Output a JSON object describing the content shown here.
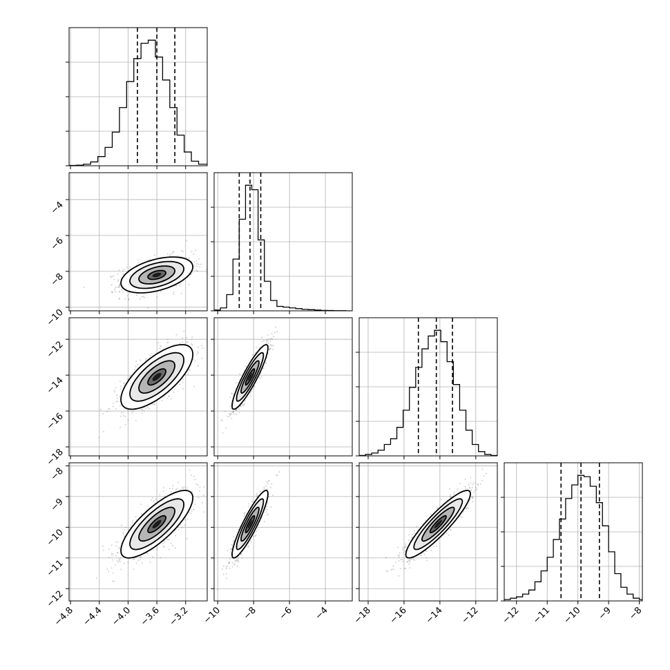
{
  "chart_data": {
    "type": "corner",
    "grid": true,
    "parameters": [
      {
        "range": [
          -4.82,
          -2.9
        ],
        "ticks": [
          -4.8,
          -4.4,
          -4.0,
          -3.6,
          -3.2
        ],
        "tick_labels": [
          "−4.8",
          "−4.4",
          "−4.0",
          "−3.6",
          "−3.2"
        ],
        "quantiles": [
          -3.87,
          -3.6,
          -3.35
        ],
        "hist": {
          "edges": [
            -4.82,
            -4.72,
            -4.62,
            -4.52,
            -4.42,
            -4.32,
            -4.22,
            -4.12,
            -4.02,
            -3.92,
            -3.82,
            -3.72,
            -3.62,
            -3.52,
            -3.42,
            -3.32,
            -3.22,
            -3.12,
            -3.02,
            -2.9
          ],
          "counts": [
            0.2,
            0.4,
            1,
            2.5,
            6,
            12,
            22,
            38,
            55,
            70,
            80,
            82,
            71,
            56,
            38,
            20,
            9,
            3,
            1
          ]
        }
      },
      {
        "range": [
          -10.2,
          -2.5
        ],
        "ticks": [
          -10,
          -8,
          -6,
          -4
        ],
        "tick_labels": [
          "−10",
          "−8",
          "−6",
          "−4"
        ],
        "ticks_y": [
          -10,
          -8,
          -6,
          -4
        ],
        "tick_labels_y": [
          "−10",
          "−8",
          "−6",
          "−4"
        ],
        "quantiles": [
          -8.8,
          -8.2,
          -7.6
        ],
        "hist": {
          "edges": [
            -10.2,
            -9.85,
            -9.5,
            -9.15,
            -8.8,
            -8.45,
            -8.1,
            -7.75,
            -7.4,
            -7.05,
            -6.7,
            -6.35,
            -6.0,
            -5.65,
            -5.3,
            -4.95,
            -4.6,
            -4.25,
            -3.9,
            -3.55,
            -3.2,
            -2.85,
            -2.5
          ],
          "counts": [
            0.5,
            2,
            11,
            35,
            62,
            85,
            82,
            48,
            20,
            7,
            3,
            2.5,
            2,
            1.5,
            1,
            0.8,
            0.5,
            0.3,
            0.2,
            0.1,
            0.1,
            0
          ]
        }
      },
      {
        "range": [
          -18.5,
          -10.8
        ],
        "ticks": [
          -18,
          -16,
          -14,
          -12
        ],
        "tick_labels": [
          "−18",
          "−16",
          "−14",
          "−12"
        ],
        "ticks_y": [
          -18,
          -16,
          -14,
          -12
        ],
        "tick_labels_y": [
          "−18",
          "−16",
          "−14",
          "−12"
        ],
        "quantiles": [
          -15.2,
          -14.2,
          -13.3
        ],
        "hist": {
          "edges": [
            -18.5,
            -18.15,
            -17.8,
            -17.45,
            -17.1,
            -16.75,
            -16.4,
            -16.05,
            -15.7,
            -15.35,
            -15.0,
            -14.65,
            -14.3,
            -13.95,
            -13.6,
            -13.25,
            -12.9,
            -12.55,
            -12.2,
            -11.85,
            -11.5,
            -11.15,
            -10.8
          ],
          "counts": [
            0.3,
            1,
            2,
            4,
            8,
            12,
            20,
            32,
            48,
            62,
            75,
            84,
            88,
            80,
            66,
            50,
            32,
            18,
            8,
            3,
            1,
            0.3
          ]
        }
      },
      {
        "range": [
          -12.4,
          -7.9
        ],
        "ticks": [
          -12,
          -11,
          -10,
          -9,
          -8
        ],
        "tick_labels": [
          "−12",
          "−11",
          "−10",
          "−9",
          "−8"
        ],
        "ticks_y": [
          -12,
          -11,
          -10,
          -9,
          -8
        ],
        "tick_labels_y": [
          "−12",
          "−11",
          "−10",
          "−9",
          "−8"
        ],
        "quantiles": [
          -10.55,
          -9.9,
          -9.3
        ],
        "hist": {
          "edges": [
            -12.4,
            -12.2,
            -12.0,
            -11.8,
            -11.6,
            -11.4,
            -11.2,
            -11.0,
            -10.8,
            -10.6,
            -10.4,
            -10.2,
            -10.0,
            -9.8,
            -9.6,
            -9.4,
            -9.2,
            -9.0,
            -8.8,
            -8.6,
            -8.4,
            -8.2,
            -8.0,
            -7.9
          ],
          "counts": [
            1,
            2,
            3,
            5,
            8,
            14,
            22,
            32,
            45,
            60,
            75,
            85,
            92,
            91,
            84,
            72,
            55,
            36,
            20,
            10,
            5,
            2,
            1
          ]
        }
      }
    ],
    "pairs": [
      {
        "x": 0,
        "y": 1,
        "center": [
          -3.6,
          -8.2
        ],
        "sd": [
          0.25,
          0.5
        ],
        "rho": 0.45
      },
      {
        "x": 0,
        "y": 2,
        "center": [
          -3.6,
          -14.1
        ],
        "sd": [
          0.25,
          0.9
        ],
        "rho": 0.7
      },
      {
        "x": 1,
        "y": 2,
        "center": [
          -8.2,
          -14.1
        ],
        "sd": [
          0.5,
          0.9
        ],
        "rho": 0.9
      },
      {
        "x": 0,
        "y": 3,
        "center": [
          -3.6,
          -9.9
        ],
        "sd": [
          0.25,
          0.55
        ],
        "rho": 0.78
      },
      {
        "x": 1,
        "y": 3,
        "center": [
          -8.2,
          -9.9
        ],
        "sd": [
          0.5,
          0.55
        ],
        "rho": 0.9
      },
      {
        "x": 2,
        "y": 3,
        "center": [
          -14.1,
          -9.9
        ],
        "sd": [
          0.9,
          0.55
        ],
        "rho": 0.9
      }
    ]
  }
}
